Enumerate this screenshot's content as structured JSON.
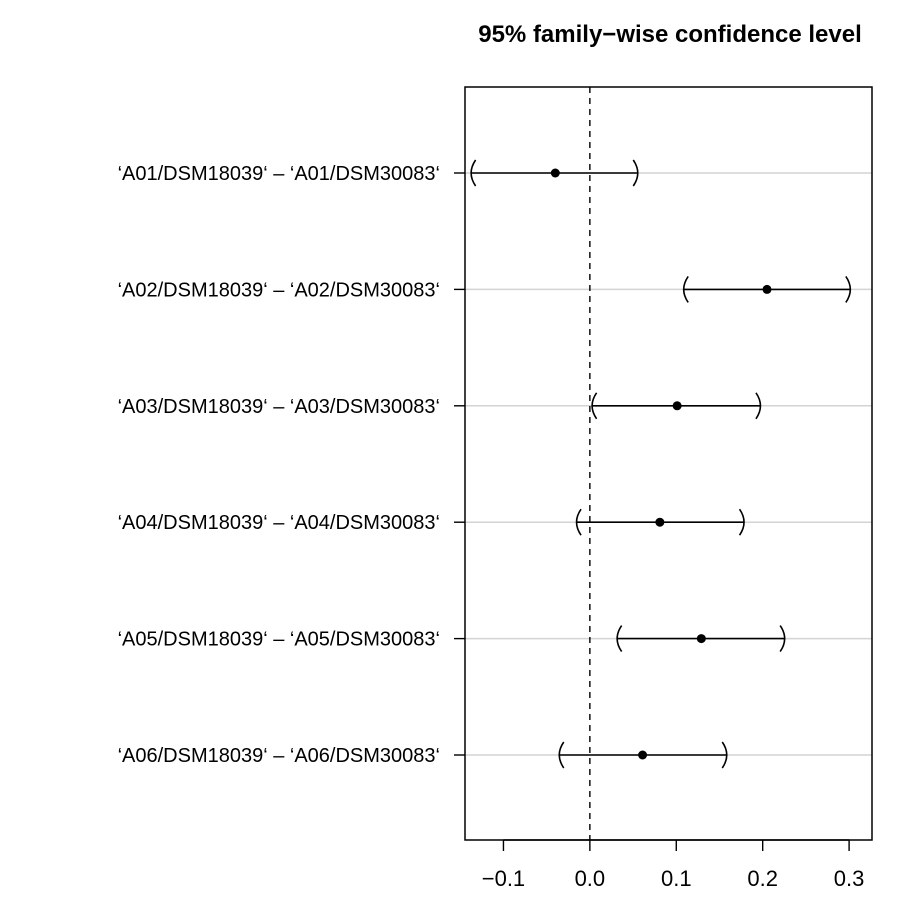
{
  "chart_data": {
    "type": "interval",
    "title": "95% family−wise confidence level",
    "xlabel": "",
    "ylabel": "",
    "xlim": [
      -0.1445,
      0.3265
    ],
    "xticks": [
      -0.1,
      0.0,
      0.1,
      0.2,
      0.3
    ],
    "xtick_labels": [
      "−0.1",
      "0.0",
      "0.1",
      "0.2",
      "0.3"
    ],
    "reference_line": 0,
    "grid": "horizontal",
    "comparisons": [
      {
        "label": "‘A01/DSM18039‘ – ‘A01/DSM30083‘",
        "lower": -0.138,
        "estimate": -0.04,
        "upper": 0.056
      },
      {
        "label": "‘A02/DSM18039‘ – ‘A02/DSM30083‘",
        "lower": 0.108,
        "estimate": 0.205,
        "upper": 0.302
      },
      {
        "label": "‘A03/DSM18039‘ – ‘A03/DSM30083‘",
        "lower": 0.002,
        "estimate": 0.101,
        "upper": 0.198
      },
      {
        "label": "‘A04/DSM18039‘ – ‘A04/DSM30083‘",
        "lower": -0.016,
        "estimate": 0.081,
        "upper": 0.179
      },
      {
        "label": "‘A05/DSM18039‘ – ‘A05/DSM30083‘",
        "lower": 0.031,
        "estimate": 0.129,
        "upper": 0.226
      },
      {
        "label": "‘A06/DSM18039‘ – ‘A06/DSM30083‘",
        "lower": -0.036,
        "estimate": 0.061,
        "upper": 0.159
      }
    ]
  }
}
